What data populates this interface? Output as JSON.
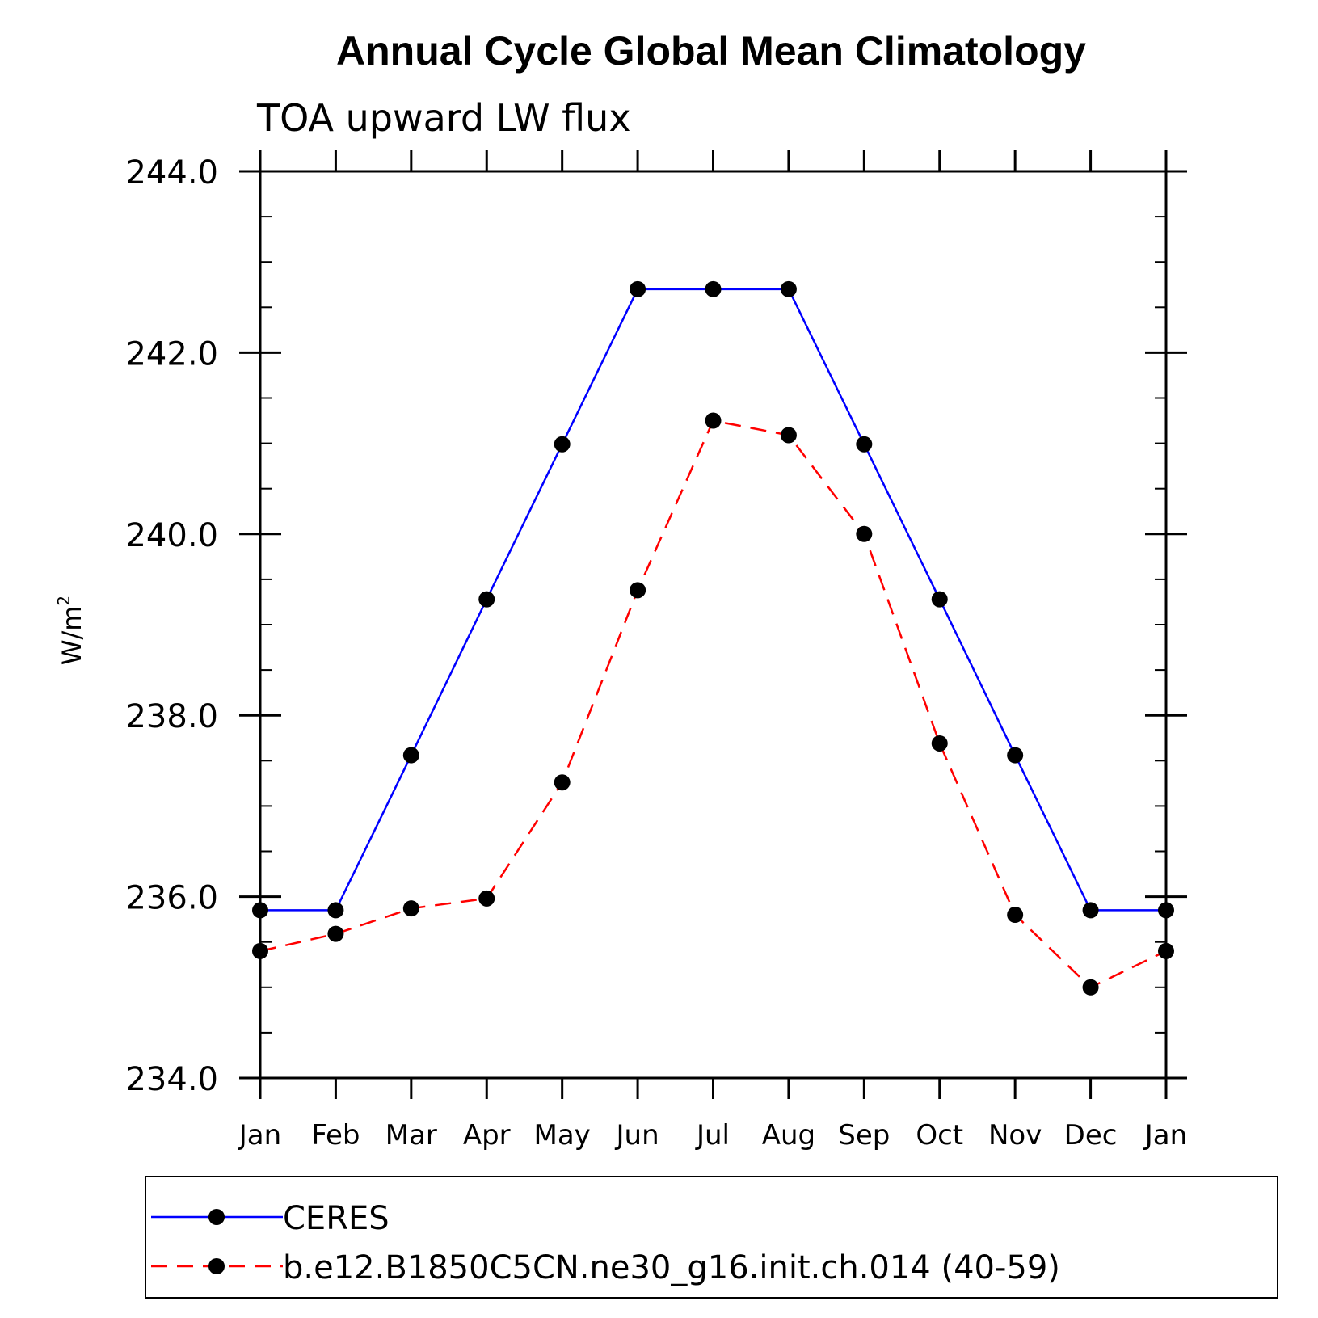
{
  "chart_data": {
    "type": "line",
    "title": "Annual Cycle Global Mean Climatology",
    "subtitle": "TOA upward LW flux",
    "ylabel": "W/m",
    "ylabel_superscript": "2",
    "categories": [
      "Jan",
      "Feb",
      "Mar",
      "Apr",
      "May",
      "Jun",
      "Jul",
      "Aug",
      "Sep",
      "Oct",
      "Nov",
      "Dec",
      "Jan"
    ],
    "ylim": [
      234.0,
      244.0
    ],
    "yticks": [
      "234.0",
      "236.0",
      "238.0",
      "240.0",
      "242.0",
      "244.0"
    ],
    "grid": false,
    "legend_position": "bottom",
    "series": [
      {
        "name": "CERES",
        "color": "#0000ff",
        "dash": "solid",
        "values": [
          235.85,
          235.85,
          237.56,
          239.28,
          240.99,
          242.7,
          242.7,
          242.7,
          240.99,
          239.28,
          237.56,
          235.85,
          235.85
        ]
      },
      {
        "name": "b.e12.B1850C5CN.ne30_g16.init.ch.014 (40-59)",
        "color": "#ff0000",
        "dash": "dashed",
        "values": [
          235.4,
          235.59,
          235.87,
          235.98,
          237.26,
          239.38,
          241.25,
          241.09,
          240.0,
          237.69,
          235.8,
          235.0,
          235.4
        ]
      }
    ]
  }
}
